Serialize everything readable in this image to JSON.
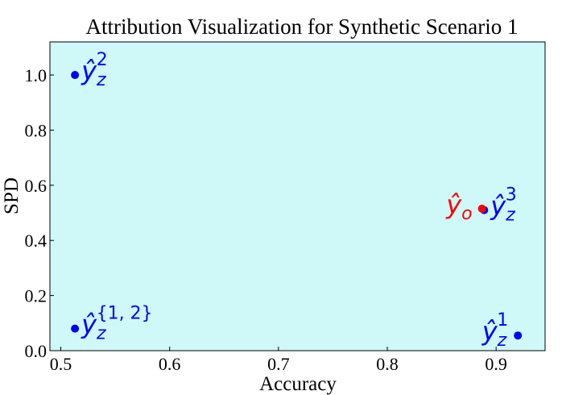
{
  "chart_data": {
    "type": "scatter",
    "title": "Attribution Visualization for Synthetic Scenario 1",
    "xlabel": "Accuracy",
    "ylabel": "SPD",
    "xlim": [
      0.49,
      0.945
    ],
    "ylim": [
      0.0,
      1.12
    ],
    "xticks": [
      0.5,
      0.6,
      0.7,
      0.8,
      0.9
    ],
    "xtick_labels": [
      "0.5",
      "0.6",
      "0.7",
      "0.8",
      "0.9"
    ],
    "yticks": [
      0.0,
      0.2,
      0.4,
      0.6,
      0.8,
      1.0
    ],
    "ytick_labels": [
      "0.0",
      "0.2",
      "0.4",
      "0.6",
      "0.8",
      "1.0"
    ],
    "grid": false,
    "background": "#cff8f8",
    "points": [
      {
        "x": 0.513,
        "y": 1.0,
        "color": "#0000ff",
        "label_base": "ŷ",
        "label_sub": "z",
        "label_sup": "2",
        "label_color": "#0000ff",
        "label_side": "right"
      },
      {
        "x": 0.513,
        "y": 0.08,
        "color": "#0000ff",
        "label_base": "ŷ",
        "label_sub": "z",
        "label_sup": "{1, 2}",
        "label_color": "#0000ff",
        "label_side": "right"
      },
      {
        "x": 0.92,
        "y": 0.055,
        "color": "#0000ff",
        "label_base": "ŷ",
        "label_sub": "z",
        "label_sup": "1",
        "label_color": "#0000ff",
        "label_side": "left"
      },
      {
        "x": 0.889,
        "y": 0.51,
        "color": "#0000ff",
        "label_base": "ŷ",
        "label_sub": "z",
        "label_sup": "3",
        "label_color": "#0000ff",
        "label_side": "right"
      },
      {
        "x": 0.887,
        "y": 0.515,
        "color": "#ff0000",
        "label_base": "ŷ",
        "label_sub": "o",
        "label_sup": "",
        "label_color": "#ff0000",
        "label_side": "left"
      }
    ]
  }
}
